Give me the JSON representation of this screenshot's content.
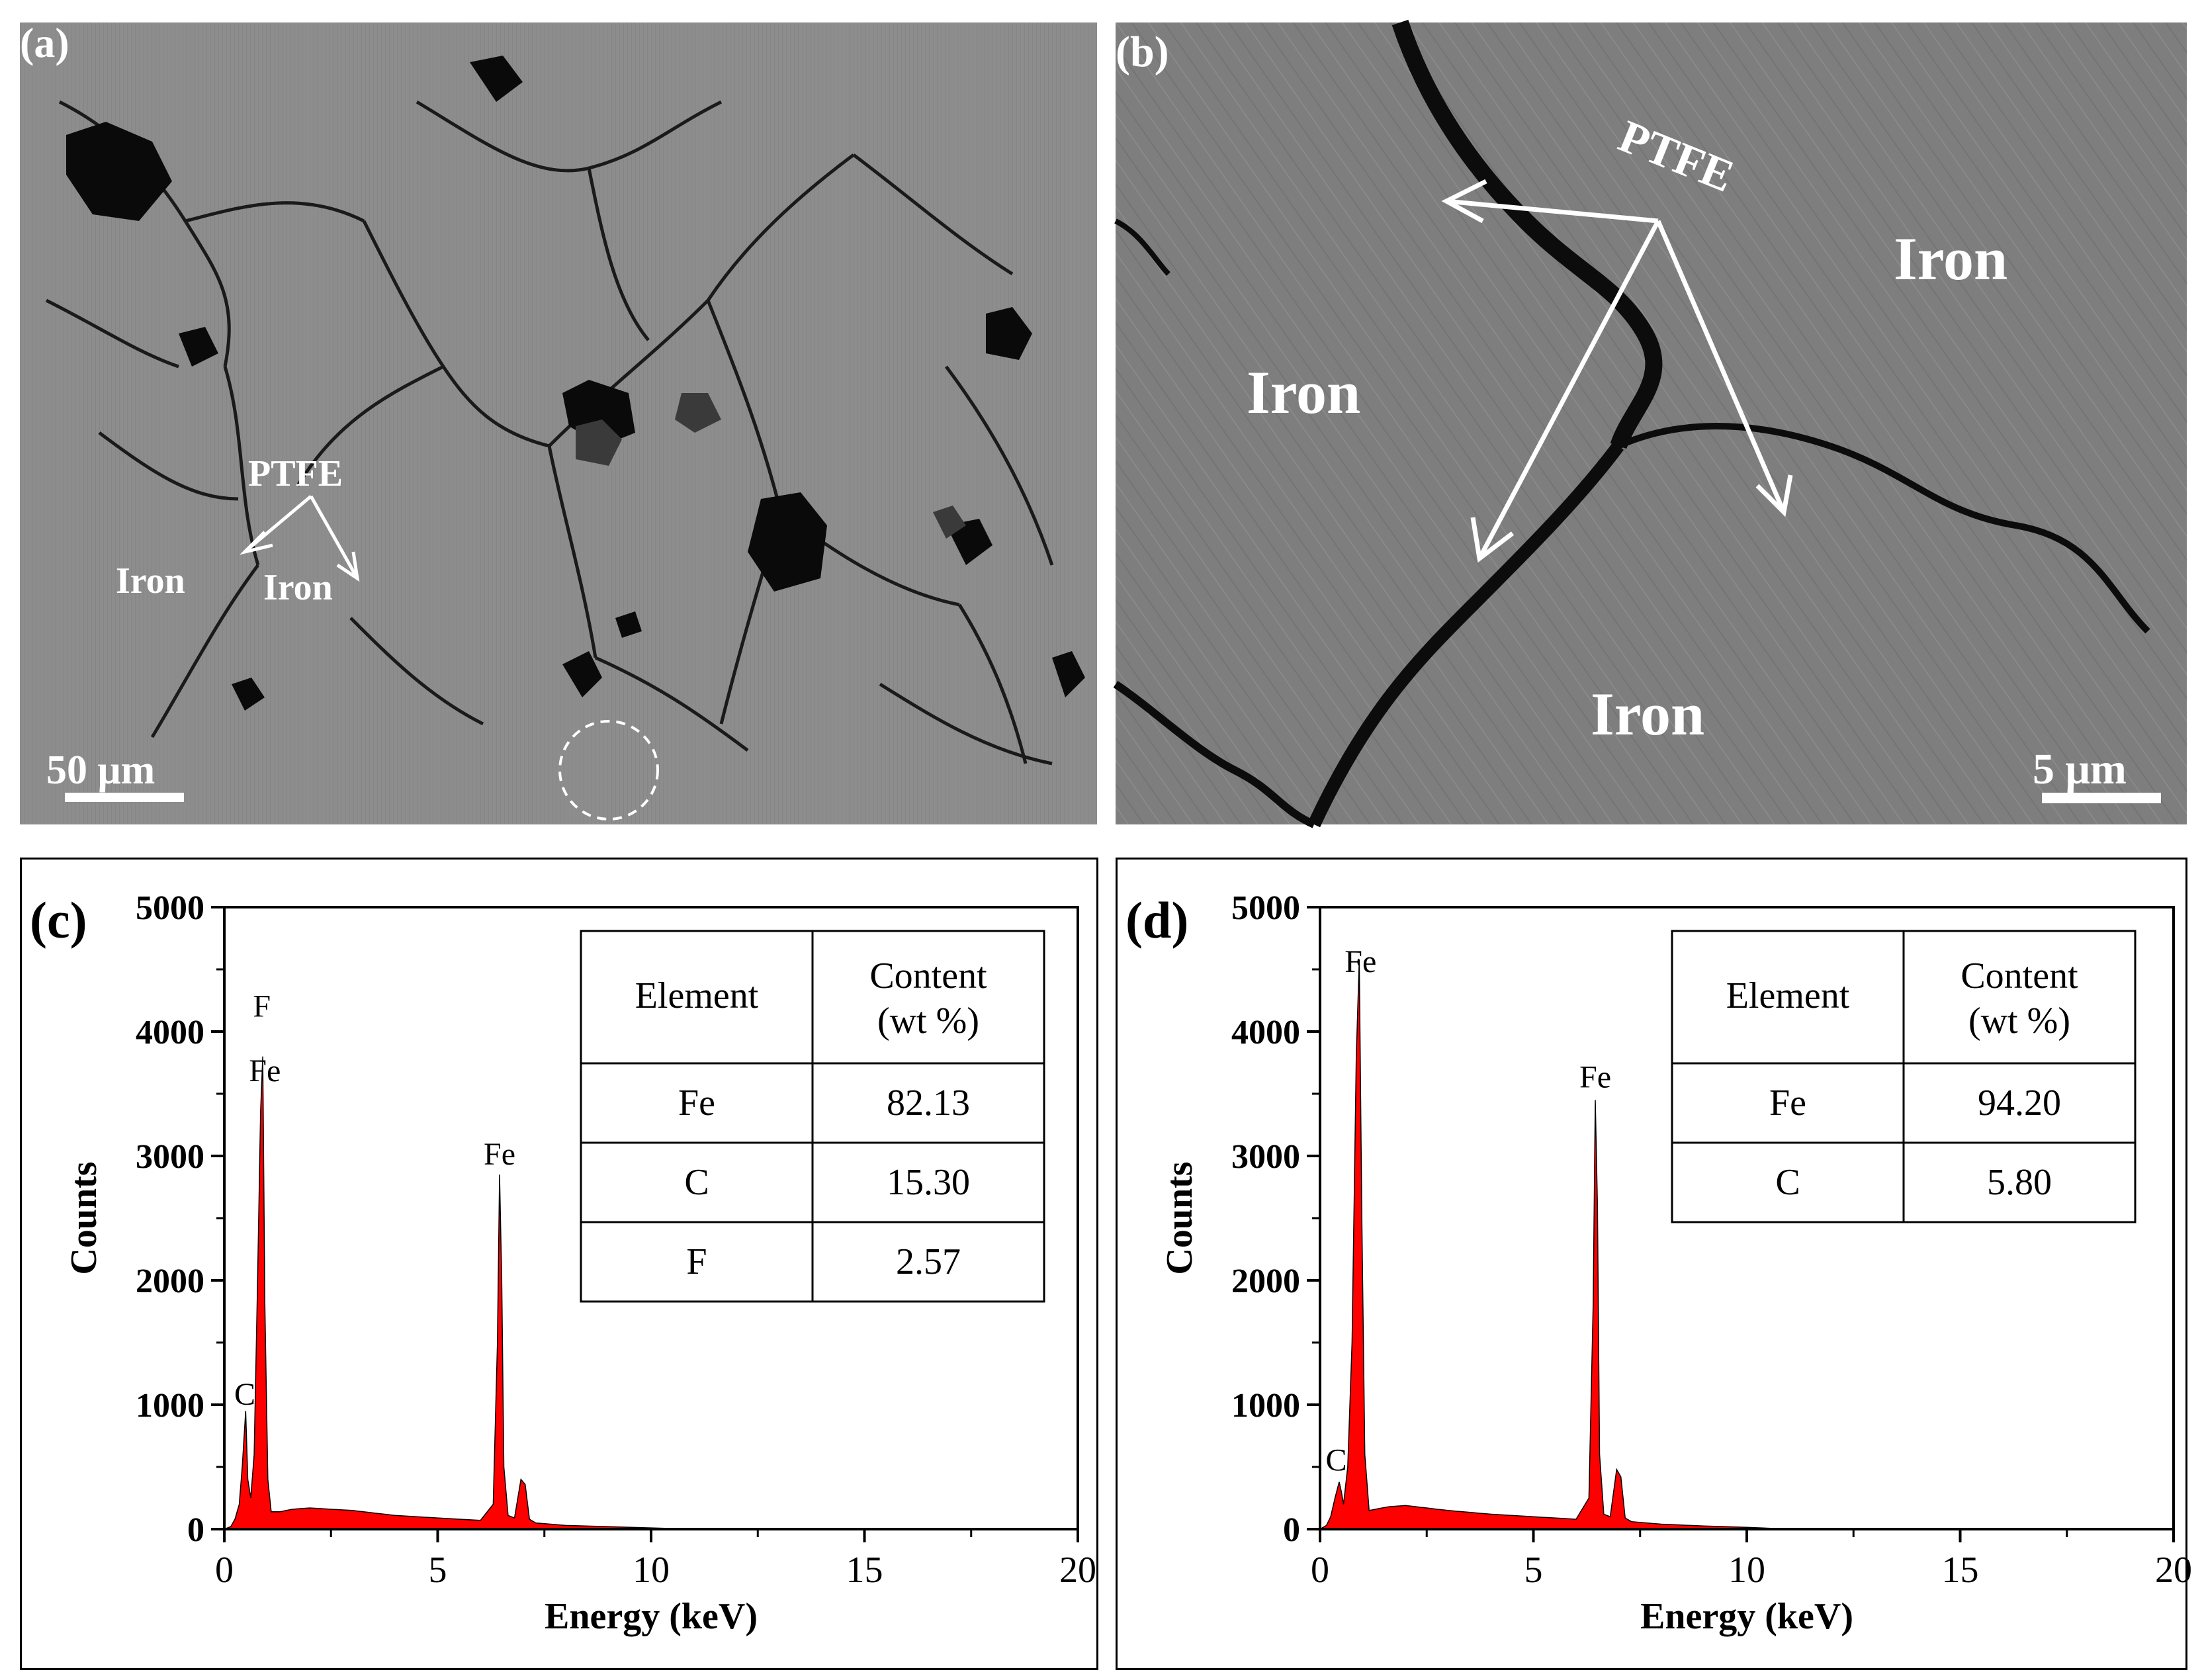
{
  "panels": {
    "a": {
      "label": "(a)",
      "annotation": "PTFE",
      "phase_left": "Iron",
      "phase_right": "Iron",
      "scalebar": "50 μm"
    },
    "b": {
      "label": "(b)",
      "annotation": "PTFE",
      "phase_top_right": "Iron",
      "phase_left": "Iron",
      "phase_bottom": "Iron",
      "scalebar": "5 μm"
    }
  },
  "chart_data": [
    {
      "panel_label": "(c)",
      "type": "area",
      "xlabel": "Energy (keV)",
      "ylabel": "Counts",
      "xlim": [
        0,
        20
      ],
      "ylim": [
        0,
        5000
      ],
      "xticks": [
        "0",
        "5",
        "10",
        "15",
        "20"
      ],
      "yticks": [
        "0",
        "1000",
        "2000",
        "3000",
        "4000",
        "5000"
      ],
      "color": "#ff0000",
      "x": [
        0,
        0.15,
        0.25,
        0.35,
        0.42,
        0.5,
        0.55,
        0.62,
        0.7,
        0.78,
        0.85,
        0.9,
        0.95,
        1.02,
        1.1,
        1.3,
        1.6,
        2.0,
        2.5,
        3.0,
        4.0,
        5.0,
        6.0,
        6.3,
        6.4,
        6.45,
        6.5,
        6.55,
        6.65,
        6.8,
        6.95,
        7.05,
        7.15,
        7.3,
        8.0,
        9.0,
        10.0,
        11.0,
        20.0
      ],
      "y": [
        0,
        20,
        80,
        200,
        500,
        950,
        400,
        250,
        600,
        2000,
        3350,
        3800,
        1800,
        400,
        140,
        140,
        160,
        170,
        160,
        150,
        110,
        90,
        70,
        200,
        1500,
        2850,
        2000,
        500,
        110,
        90,
        400,
        360,
        80,
        50,
        30,
        20,
        10,
        0,
        0
      ],
      "peak_labels": [
        {
          "text": "C",
          "x": 0.48,
          "y": 1000
        },
        {
          "text": "F",
          "x": 0.88,
          "y": 4120
        },
        {
          "text": "Fe",
          "x": 0.95,
          "y": 3600
        },
        {
          "text": "Fe",
          "x": 6.45,
          "y": 2930
        }
      ],
      "table": {
        "headers": [
          "Element",
          "Content",
          "(wt %)"
        ],
        "rows": [
          [
            "Fe",
            "82.13"
          ],
          [
            "C",
            "15.30"
          ],
          [
            "F",
            "2.57"
          ]
        ]
      }
    },
    {
      "panel_label": "(d)",
      "type": "area",
      "xlabel": "Energy (keV)",
      "ylabel": "Counts",
      "xlim": [
        0,
        20
      ],
      "ylim": [
        0,
        5000
      ],
      "xticks": [
        "0",
        "5",
        "10",
        "15",
        "20"
      ],
      "yticks": [
        "0",
        "1000",
        "2000",
        "3000",
        "4000",
        "5000"
      ],
      "color": "#ff0000",
      "x": [
        0,
        0.15,
        0.25,
        0.35,
        0.45,
        0.5,
        0.55,
        0.65,
        0.75,
        0.85,
        0.92,
        0.98,
        1.05,
        1.15,
        1.3,
        1.6,
        2.0,
        2.5,
        3.0,
        4.0,
        5.0,
        6.0,
        6.3,
        6.4,
        6.45,
        6.5,
        6.55,
        6.65,
        6.8,
        6.95,
        7.05,
        7.15,
        7.3,
        8.0,
        9.0,
        10.0,
        11.0,
        20.0
      ],
      "y": [
        0,
        30,
        100,
        250,
        380,
        300,
        200,
        500,
        1500,
        3800,
        4580,
        2500,
        600,
        150,
        160,
        180,
        190,
        170,
        150,
        120,
        100,
        80,
        250,
        1800,
        3450,
        2600,
        600,
        120,
        100,
        480,
        420,
        90,
        60,
        40,
        25,
        15,
        0,
        0
      ],
      "peak_labels": [
        {
          "text": "C",
          "x": 0.38,
          "y": 470
        },
        {
          "text": "Fe",
          "x": 0.95,
          "y": 4480
        },
        {
          "text": "Fe",
          "x": 6.45,
          "y": 3550
        }
      ],
      "table": {
        "headers": [
          "Element",
          "Content",
          "(wt %)"
        ],
        "rows": [
          [
            "Fe",
            "94.20"
          ],
          [
            "C",
            "5.80"
          ]
        ]
      }
    }
  ]
}
